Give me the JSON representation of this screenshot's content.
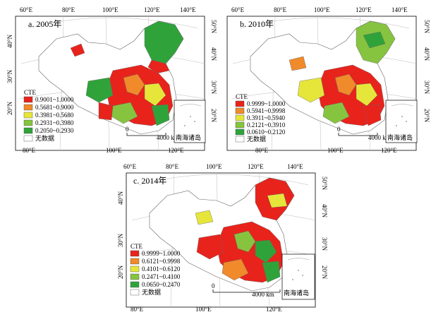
{
  "legend_title": "CTE",
  "scale_label": "4000 km",
  "scale_zero": "0",
  "inset_label": "南海诸岛",
  "no_data_label": "无数据",
  "colors": {
    "class1": "#e8231c",
    "class2": "#f08a2a",
    "class3": "#e6e63a",
    "class4": "#86c440",
    "class5": "#2fa33a",
    "no_data": "#ffffff"
  },
  "top_lon_labels": [
    "60°E",
    "80°E",
    "100°E",
    "120°E",
    "140°E"
  ],
  "bottom_lon_labels": [
    "80°E",
    "100°E",
    "120°E"
  ],
  "lat_labels_left": [
    "40°N",
    "30°N",
    "20°N"
  ],
  "lat_labels_right": [
    "50°N",
    "40°N",
    "30°N",
    "20°N"
  ],
  "panels": [
    {
      "title": "a. 2005年",
      "legend": [
        "0.9001~1.0000",
        "0.5681~0.9000",
        "0.3981~0.5680",
        "0.2931~0.3980",
        "0.2050~0.2930"
      ]
    },
    {
      "title": "b. 2010年",
      "legend": [
        "0.9999~1.0000",
        "0.5941~0.9998",
        "0.3911~0.5940",
        "0.2121~0.3910",
        "0.0610~0.2120"
      ]
    },
    {
      "title": "c. 2014年",
      "legend": [
        "0.9999~1.0000",
        "0.6121~0.9998",
        "0.4101~0.6120",
        "0.2471~0.4100",
        "0.0650~0.2470"
      ]
    }
  ]
}
